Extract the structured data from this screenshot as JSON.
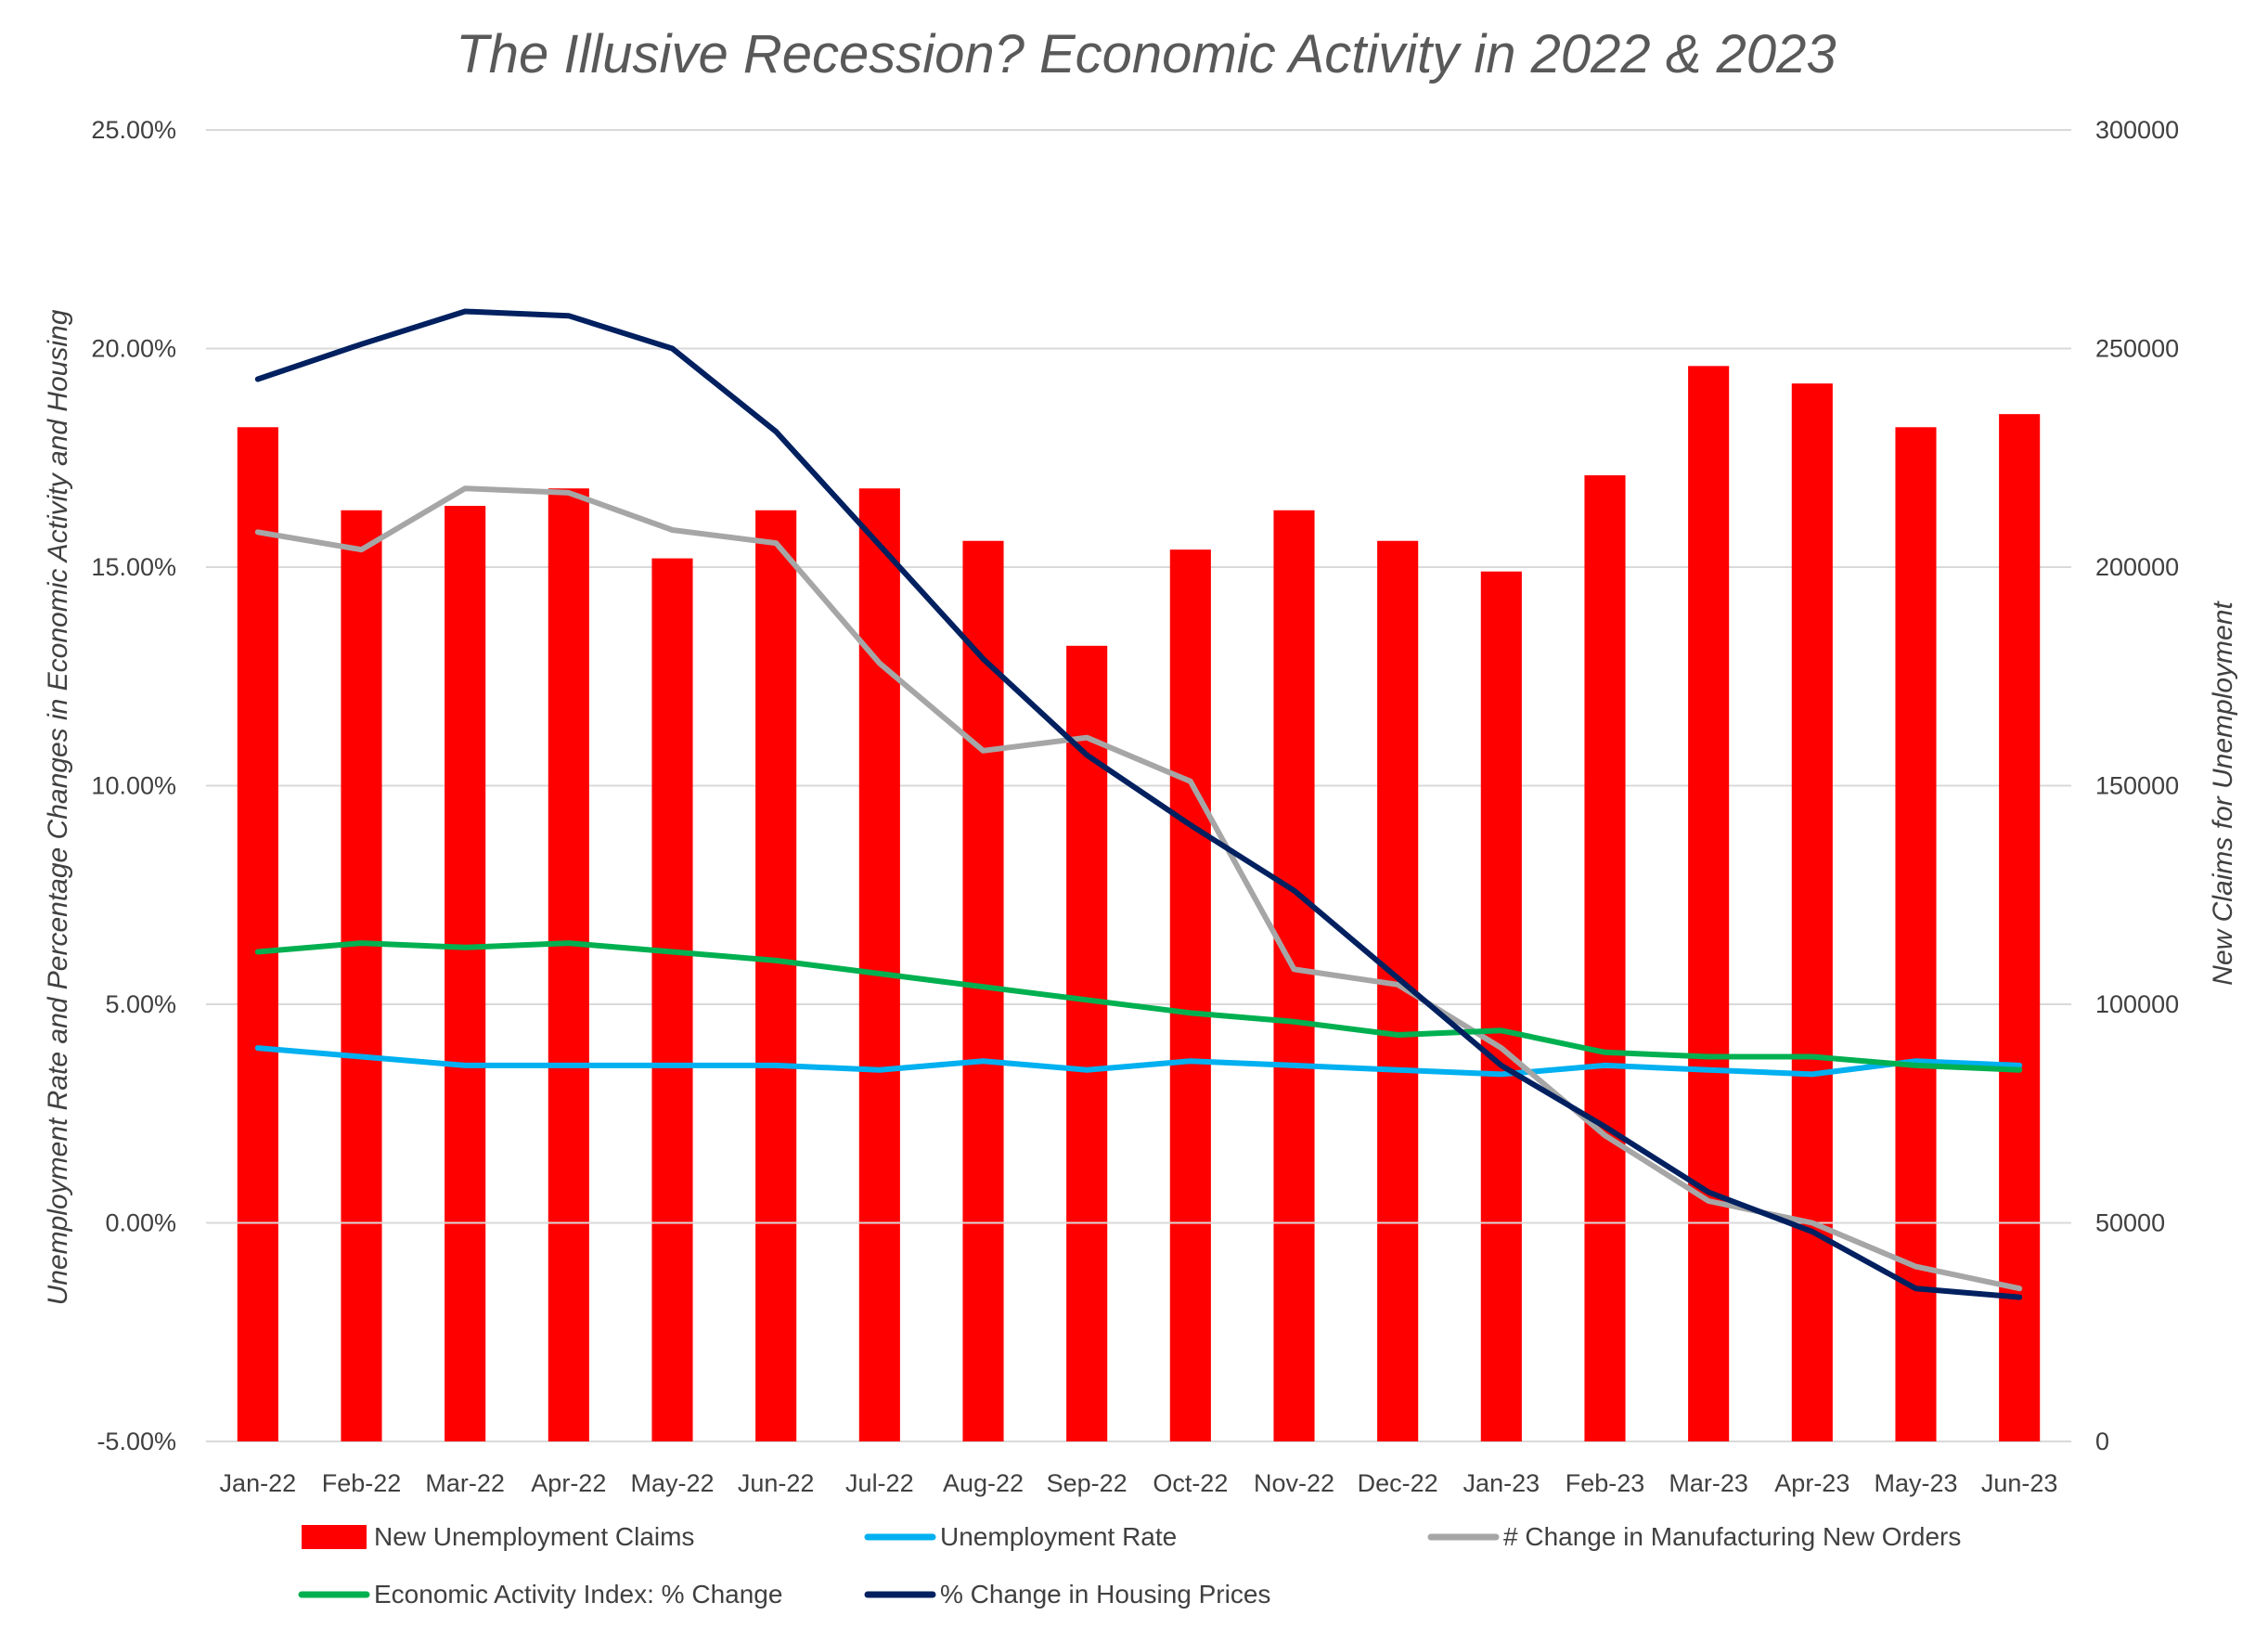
{
  "chart_data": {
    "type": "bar+line",
    "title": "The Illusive Recession? Economic Activity in 2022 & 2023",
    "ylabel_left": "Unemployment Rate and Percentage Changes in Economic Activity and Housing",
    "ylabel_right": "New Claims for Unemployment",
    "ylim_left": [
      -5,
      25
    ],
    "ylim_right": [
      0,
      300000
    ],
    "left_ticks": [
      "25.00%",
      "20.00%",
      "15.00%",
      "10.00%",
      "5.00%",
      "0.00%",
      "-5.00%"
    ],
    "left_tick_values": [
      25,
      20,
      15,
      10,
      5,
      0,
      -5
    ],
    "right_ticks": [
      "300000",
      "250000",
      "200000",
      "150000",
      "100000",
      "50000",
      "0"
    ],
    "right_tick_values": [
      300000,
      250000,
      200000,
      150000,
      100000,
      50000,
      0
    ],
    "grid": true,
    "legend_position": "bottom",
    "categories": [
      "Jan-22",
      "Feb-22",
      "Mar-22",
      "Apr-22",
      "May-22",
      "Jun-22",
      "Jul-22",
      "Aug-22",
      "Sep-22",
      "Oct-22",
      "Nov-22",
      "Dec-22",
      "Jan-23",
      "Feb-23",
      "Mar-23",
      "Apr-23",
      "May-23",
      "Jun-23"
    ],
    "bar_series": {
      "name": "New Unemployment Claims",
      "axis": "right",
      "color": "#FF0000",
      "values": [
        232000,
        213000,
        214000,
        218000,
        202000,
        213000,
        218000,
        206000,
        182000,
        204000,
        213000,
        206000,
        199000,
        221000,
        246000,
        242000,
        232000,
        235000
      ]
    },
    "line_series": [
      {
        "name": "Unemployment Rate",
        "axis": "left",
        "color": "#00B0F0",
        "values": [
          4.0,
          3.8,
          3.6,
          3.6,
          3.6,
          3.6,
          3.5,
          3.7,
          3.5,
          3.7,
          3.6,
          3.5,
          3.4,
          3.6,
          3.5,
          3.4,
          3.7,
          3.6
        ]
      },
      {
        "name": "# Change in Manufacturing New Orders",
        "axis": "left",
        "color": "#A6A6A6",
        "values": [
          15.8,
          15.4,
          16.8,
          16.7,
          15.85,
          15.55,
          12.8,
          10.8,
          11.1,
          10.1,
          5.8,
          5.45,
          4.0,
          2.0,
          0.5,
          0.0,
          -1.0,
          -1.5
        ]
      },
      {
        "name": "Economic Activity Index: % Change",
        "axis": "left",
        "color": "#00B050",
        "values": [
          6.2,
          6.4,
          6.3,
          6.4,
          6.2,
          6.0,
          5.7,
          5.4,
          5.1,
          4.8,
          4.6,
          4.3,
          4.4,
          3.9,
          3.8,
          3.8,
          3.6,
          3.5
        ]
      },
      {
        "name": "% Change in Housing Prices",
        "axis": "left",
        "color": "#002060",
        "values": [
          19.3,
          20.1,
          20.85,
          20.75,
          20.0,
          18.1,
          15.5,
          12.9,
          10.7,
          9.1,
          7.6,
          5.6,
          3.6,
          2.2,
          0.7,
          -0.2,
          -1.5,
          -1.7
        ]
      }
    ],
    "legend": [
      {
        "label": "New Unemployment Claims",
        "kind": "bar",
        "color": "#FF0000"
      },
      {
        "label": "Unemployment Rate",
        "kind": "line",
        "color": "#00B0F0"
      },
      {
        "label": "# Change in Manufacturing New Orders",
        "kind": "line",
        "color": "#A6A6A6"
      },
      {
        "label": "Economic Activity Index: % Change",
        "kind": "line",
        "color": "#00B050"
      },
      {
        "label": "% Change in Housing Prices",
        "kind": "line",
        "color": "#002060"
      }
    ]
  }
}
